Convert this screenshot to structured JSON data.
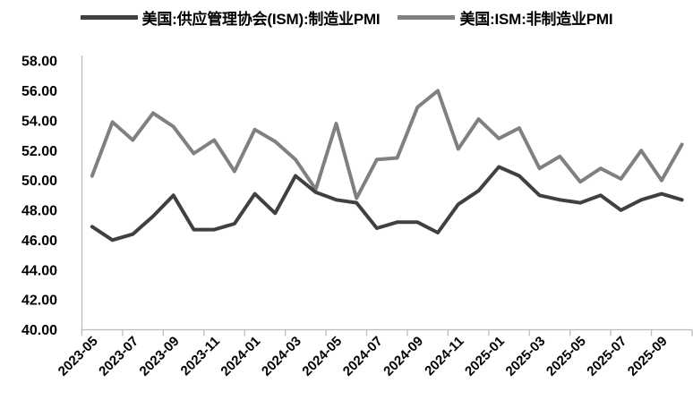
{
  "legend": {
    "items": [
      {
        "label": "美国:供应管理协会(ISM):制造业PMI",
        "color": "#404040"
      },
      {
        "label": "美国:ISM:非制造业PMI",
        "color": "#808080"
      }
    ]
  },
  "chart_data": {
    "type": "line",
    "title": "",
    "xlabel": "",
    "ylabel": "",
    "ylim": [
      40,
      58
    ],
    "ytick_step": 2,
    "grid": false,
    "legend_position": "top-center",
    "axis_color": "#bdbdbd",
    "x": [
      "2023-05",
      "2023-06",
      "2023-07",
      "2023-08",
      "2023-09",
      "2023-10",
      "2023-11",
      "2023-12",
      "2024-01",
      "2024-02",
      "2024-03",
      "2024-04",
      "2024-05",
      "2024-06",
      "2024-07",
      "2024-08",
      "2024-09",
      "2024-10",
      "2024-11",
      "2024-12",
      "2025-01",
      "2025-02",
      "2025-03",
      "2025-04",
      "2025-05",
      "2025-06",
      "2025-07",
      "2025-08",
      "2025-09",
      "2025-10"
    ],
    "series": [
      {
        "name": "美国:供应管理协会(ISM):制造业PMI",
        "color": "#404040",
        "values": [
          46.9,
          46.0,
          46.4,
          47.6,
          49.0,
          46.7,
          46.7,
          47.1,
          49.1,
          47.8,
          50.3,
          49.2,
          48.7,
          48.5,
          46.8,
          47.2,
          47.2,
          46.5,
          48.4,
          49.3,
          50.9,
          50.3,
          49.0,
          48.7,
          48.5,
          49.0,
          48.0,
          48.7,
          49.1,
          48.7
        ]
      },
      {
        "name": "美国:ISM:非制造业PMI",
        "color": "#808080",
        "values": [
          50.3,
          53.9,
          52.7,
          54.5,
          53.6,
          51.8,
          52.7,
          50.6,
          53.4,
          52.6,
          51.4,
          49.4,
          53.8,
          48.8,
          51.4,
          51.5,
          54.9,
          56.0,
          52.1,
          54.1,
          52.8,
          53.5,
          50.8,
          51.6,
          49.9,
          50.8,
          50.1,
          52.0,
          50.0,
          52.4
        ]
      }
    ],
    "y_tick_labels": [
      "58.00",
      "56.00",
      "54.00",
      "52.00",
      "50.00",
      "48.00",
      "46.00",
      "44.00",
      "42.00",
      "40.00"
    ],
    "x_tick_labels": [
      "2023-05",
      "2023-07",
      "2023-09",
      "2023-11",
      "2024-01",
      "2024-03",
      "2024-05",
      "2024-07",
      "2024-09",
      "2024-11",
      "2025-01",
      "2025-03",
      "2025-05",
      "2025-07",
      "2025-09"
    ]
  }
}
